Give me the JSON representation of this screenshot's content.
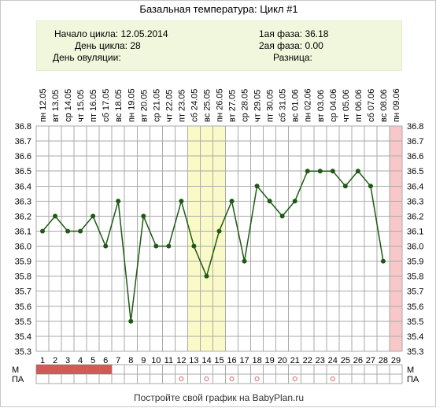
{
  "title": "Базальная температура: Цикл #1",
  "info": {
    "start_label": "Начало цикла:",
    "start_value": "12.05.2014",
    "day_label": "День цикла:",
    "day_value": "28",
    "ovulation_label": "День овуляции:",
    "ovulation_value": "",
    "phase1_label": "1ая фаза:",
    "phase1_value": "36.18",
    "phase2_label": "2ая фаза:",
    "phase2_value": "0.00",
    "diff_label": "Разница:",
    "diff_value": ""
  },
  "row_labels": {
    "m": "М",
    "pa": "ПА"
  },
  "footer": "Постройте свой график на BabyPlan.ru",
  "colors": {
    "line": "#1e5a14",
    "marker": "#1e5a14",
    "highlight": "#fafac8",
    "last_day": "#f8c8c8",
    "menstruation": "#d05a5a",
    "grid": "#aaaaaa",
    "pa_mark": "#e06060"
  },
  "chart_data": {
    "type": "line",
    "x": [
      1,
      2,
      3,
      4,
      5,
      6,
      7,
      8,
      9,
      10,
      11,
      12,
      13,
      14,
      15,
      16,
      17,
      18,
      19,
      20,
      21,
      22,
      23,
      24,
      25,
      26,
      27,
      28,
      29
    ],
    "dates": [
      "пн 12.05",
      "вт 13.05",
      "ср 14.05",
      "чт 15.05",
      "пт 16.05",
      "сб 17.05",
      "вс 18.05",
      "пн 19.05",
      "вт 20.05",
      "ср 21.05",
      "чт 22.05",
      "пт 23.05",
      "сб 24.05",
      "вс 25.05",
      "пн 26.05",
      "вт 27.05",
      "ср 28.05",
      "чт 29.05",
      "пт 30.05",
      "сб 31.05",
      "вс 01.06",
      "пн 02.06",
      "вт 03.06",
      "ср 04.06",
      "чт 05.06",
      "пт 06.06",
      "сб 07.06",
      "вс 08.06",
      "пн 09.06"
    ],
    "values": [
      36.1,
      36.2,
      36.1,
      36.1,
      36.2,
      36.0,
      36.3,
      35.5,
      36.2,
      36.0,
      36.0,
      36.3,
      36.0,
      35.8,
      36.1,
      36.3,
      35.9,
      36.4,
      36.3,
      36.2,
      36.3,
      36.5,
      36.5,
      36.5,
      36.4,
      36.5,
      36.4,
      35.9,
      null
    ],
    "ylim": [
      35.3,
      36.8
    ],
    "y_ticks": [
      "35.3",
      "35.4",
      "35.5",
      "35.6",
      "35.7",
      "35.8",
      "35.9",
      "36.0",
      "36.1",
      "36.2",
      "36.3",
      "36.4",
      "36.5",
      "36.6",
      "36.7",
      "36.8"
    ],
    "highlight_days": [
      13,
      15
    ],
    "last_day": 29,
    "menstruation_days": [
      1,
      2,
      3,
      4,
      5,
      6
    ],
    "pa_days": [
      12,
      14,
      16,
      18,
      21,
      24
    ],
    "grid": true
  }
}
